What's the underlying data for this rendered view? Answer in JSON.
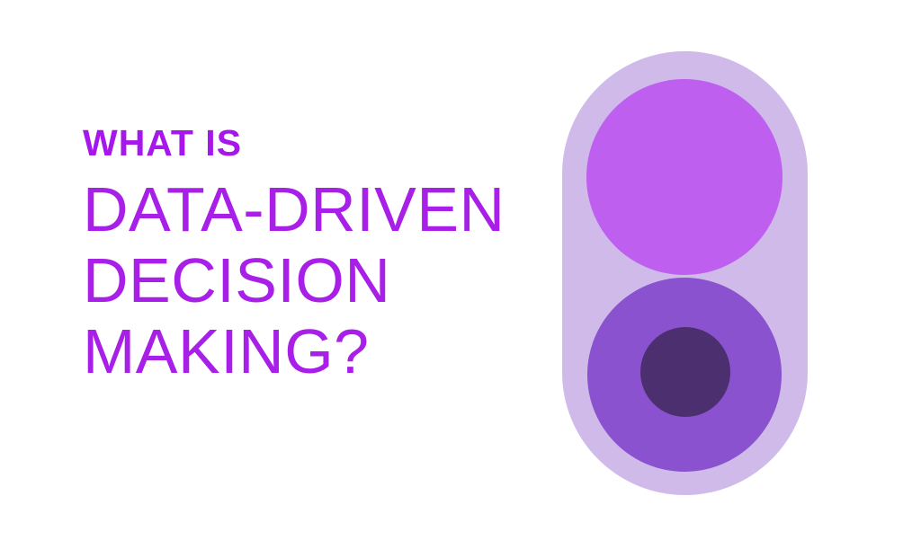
{
  "page": {
    "background_color": "#ffffff"
  },
  "title": {
    "kicker": "WHAT IS",
    "kicker_color": "#a517ea",
    "heading_lines": [
      "DATA-DRIVEN",
      "DECISION",
      "MAKING?"
    ],
    "heading_color": "#a81fe8"
  },
  "graphic": {
    "description": "pill-with-two-circles-illustration",
    "pill_color": "#cfbaea",
    "top_circle_color": "#bf5fef",
    "bottom_circle_color": "#8a52ce",
    "inner_circle_color": "#4c2f6e"
  }
}
